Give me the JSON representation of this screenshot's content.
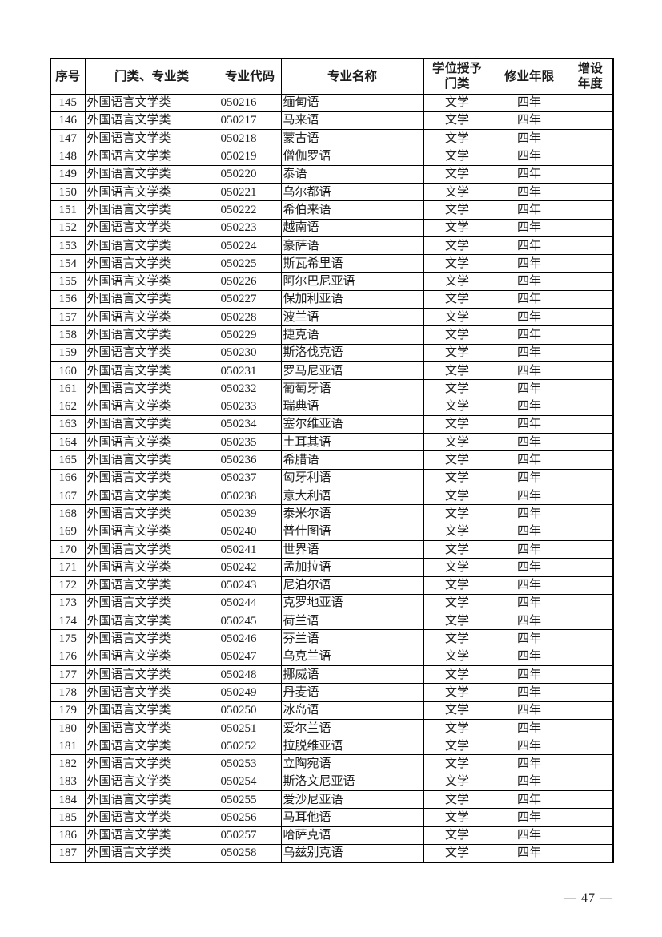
{
  "page": {
    "number_label": "— 47 —"
  },
  "table": {
    "headers": [
      {
        "label": "序号"
      },
      {
        "label": "门类、专业类"
      },
      {
        "label": "专业代码"
      },
      {
        "label": "专业名称"
      },
      {
        "label": "学位授予\n门类"
      },
      {
        "label": "修业年限"
      },
      {
        "label": "增设\n年度"
      }
    ],
    "rows": [
      {
        "no": "145",
        "category": "外国语言文学类",
        "code": "050216",
        "name": "缅甸语",
        "degree": "文学",
        "years": "四年",
        "added": ""
      },
      {
        "no": "146",
        "category": "外国语言文学类",
        "code": "050217",
        "name": "马来语",
        "degree": "文学",
        "years": "四年",
        "added": ""
      },
      {
        "no": "147",
        "category": "外国语言文学类",
        "code": "050218",
        "name": "蒙古语",
        "degree": "文学",
        "years": "四年",
        "added": ""
      },
      {
        "no": "148",
        "category": "外国语言文学类",
        "code": "050219",
        "name": "僧伽罗语",
        "degree": "文学",
        "years": "四年",
        "added": ""
      },
      {
        "no": "149",
        "category": "外国语言文学类",
        "code": "050220",
        "name": "泰语",
        "degree": "文学",
        "years": "四年",
        "added": ""
      },
      {
        "no": "150",
        "category": "外国语言文学类",
        "code": "050221",
        "name": "乌尔都语",
        "degree": "文学",
        "years": "四年",
        "added": ""
      },
      {
        "no": "151",
        "category": "外国语言文学类",
        "code": "050222",
        "name": "希伯来语",
        "degree": "文学",
        "years": "四年",
        "added": ""
      },
      {
        "no": "152",
        "category": "外国语言文学类",
        "code": "050223",
        "name": "越南语",
        "degree": "文学",
        "years": "四年",
        "added": ""
      },
      {
        "no": "153",
        "category": "外国语言文学类",
        "code": "050224",
        "name": "豪萨语",
        "degree": "文学",
        "years": "四年",
        "added": ""
      },
      {
        "no": "154",
        "category": "外国语言文学类",
        "code": "050225",
        "name": "斯瓦希里语",
        "degree": "文学",
        "years": "四年",
        "added": ""
      },
      {
        "no": "155",
        "category": "外国语言文学类",
        "code": "050226",
        "name": "阿尔巴尼亚语",
        "degree": "文学",
        "years": "四年",
        "added": ""
      },
      {
        "no": "156",
        "category": "外国语言文学类",
        "code": "050227",
        "name": "保加利亚语",
        "degree": "文学",
        "years": "四年",
        "added": ""
      },
      {
        "no": "157",
        "category": "外国语言文学类",
        "code": "050228",
        "name": "波兰语",
        "degree": "文学",
        "years": "四年",
        "added": ""
      },
      {
        "no": "158",
        "category": "外国语言文学类",
        "code": "050229",
        "name": "捷克语",
        "degree": "文学",
        "years": "四年",
        "added": ""
      },
      {
        "no": "159",
        "category": "外国语言文学类",
        "code": "050230",
        "name": "斯洛伐克语",
        "degree": "文学",
        "years": "四年",
        "added": ""
      },
      {
        "no": "160",
        "category": "外国语言文学类",
        "code": "050231",
        "name": "罗马尼亚语",
        "degree": "文学",
        "years": "四年",
        "added": ""
      },
      {
        "no": "161",
        "category": "外国语言文学类",
        "code": "050232",
        "name": "葡萄牙语",
        "degree": "文学",
        "years": "四年",
        "added": ""
      },
      {
        "no": "162",
        "category": "外国语言文学类",
        "code": "050233",
        "name": "瑞典语",
        "degree": "文学",
        "years": "四年",
        "added": ""
      },
      {
        "no": "163",
        "category": "外国语言文学类",
        "code": "050234",
        "name": "塞尔维亚语",
        "degree": "文学",
        "years": "四年",
        "added": ""
      },
      {
        "no": "164",
        "category": "外国语言文学类",
        "code": "050235",
        "name": "土耳其语",
        "degree": "文学",
        "years": "四年",
        "added": ""
      },
      {
        "no": "165",
        "category": "外国语言文学类",
        "code": "050236",
        "name": "希腊语",
        "degree": "文学",
        "years": "四年",
        "added": ""
      },
      {
        "no": "166",
        "category": "外国语言文学类",
        "code": "050237",
        "name": "匈牙利语",
        "degree": "文学",
        "years": "四年",
        "added": ""
      },
      {
        "no": "167",
        "category": "外国语言文学类",
        "code": "050238",
        "name": "意大利语",
        "degree": "文学",
        "years": "四年",
        "added": ""
      },
      {
        "no": "168",
        "category": "外国语言文学类",
        "code": "050239",
        "name": "泰米尔语",
        "degree": "文学",
        "years": "四年",
        "added": ""
      },
      {
        "no": "169",
        "category": "外国语言文学类",
        "code": "050240",
        "name": "普什图语",
        "degree": "文学",
        "years": "四年",
        "added": ""
      },
      {
        "no": "170",
        "category": "外国语言文学类",
        "code": "050241",
        "name": "世界语",
        "degree": "文学",
        "years": "四年",
        "added": ""
      },
      {
        "no": "171",
        "category": "外国语言文学类",
        "code": "050242",
        "name": "孟加拉语",
        "degree": "文学",
        "years": "四年",
        "added": ""
      },
      {
        "no": "172",
        "category": "外国语言文学类",
        "code": "050243",
        "name": "尼泊尔语",
        "degree": "文学",
        "years": "四年",
        "added": ""
      },
      {
        "no": "173",
        "category": "外国语言文学类",
        "code": "050244",
        "name": "克罗地亚语",
        "degree": "文学",
        "years": "四年",
        "added": ""
      },
      {
        "no": "174",
        "category": "外国语言文学类",
        "code": "050245",
        "name": "荷兰语",
        "degree": "文学",
        "years": "四年",
        "added": ""
      },
      {
        "no": "175",
        "category": "外国语言文学类",
        "code": "050246",
        "name": "芬兰语",
        "degree": "文学",
        "years": "四年",
        "added": ""
      },
      {
        "no": "176",
        "category": "外国语言文学类",
        "code": "050247",
        "name": "乌克兰语",
        "degree": "文学",
        "years": "四年",
        "added": ""
      },
      {
        "no": "177",
        "category": "外国语言文学类",
        "code": "050248",
        "name": "挪威语",
        "degree": "文学",
        "years": "四年",
        "added": ""
      },
      {
        "no": "178",
        "category": "外国语言文学类",
        "code": "050249",
        "name": "丹麦语",
        "degree": "文学",
        "years": "四年",
        "added": ""
      },
      {
        "no": "179",
        "category": "外国语言文学类",
        "code": "050250",
        "name": "冰岛语",
        "degree": "文学",
        "years": "四年",
        "added": ""
      },
      {
        "no": "180",
        "category": "外国语言文学类",
        "code": "050251",
        "name": "爱尔兰语",
        "degree": "文学",
        "years": "四年",
        "added": ""
      },
      {
        "no": "181",
        "category": "外国语言文学类",
        "code": "050252",
        "name": "拉脱维亚语",
        "degree": "文学",
        "years": "四年",
        "added": ""
      },
      {
        "no": "182",
        "category": "外国语言文学类",
        "code": "050253",
        "name": "立陶宛语",
        "degree": "文学",
        "years": "四年",
        "added": ""
      },
      {
        "no": "183",
        "category": "外国语言文学类",
        "code": "050254",
        "name": "斯洛文尼亚语",
        "degree": "文学",
        "years": "四年",
        "added": ""
      },
      {
        "no": "184",
        "category": "外国语言文学类",
        "code": "050255",
        "name": "爱沙尼亚语",
        "degree": "文学",
        "years": "四年",
        "added": ""
      },
      {
        "no": "185",
        "category": "外国语言文学类",
        "code": "050256",
        "name": "马耳他语",
        "degree": "文学",
        "years": "四年",
        "added": ""
      },
      {
        "no": "186",
        "category": "外国语言文学类",
        "code": "050257",
        "name": "哈萨克语",
        "degree": "文学",
        "years": "四年",
        "added": ""
      },
      {
        "no": "187",
        "category": "外国语言文学类",
        "code": "050258",
        "name": "乌兹别克语",
        "degree": "文学",
        "years": "四年",
        "added": ""
      }
    ]
  }
}
